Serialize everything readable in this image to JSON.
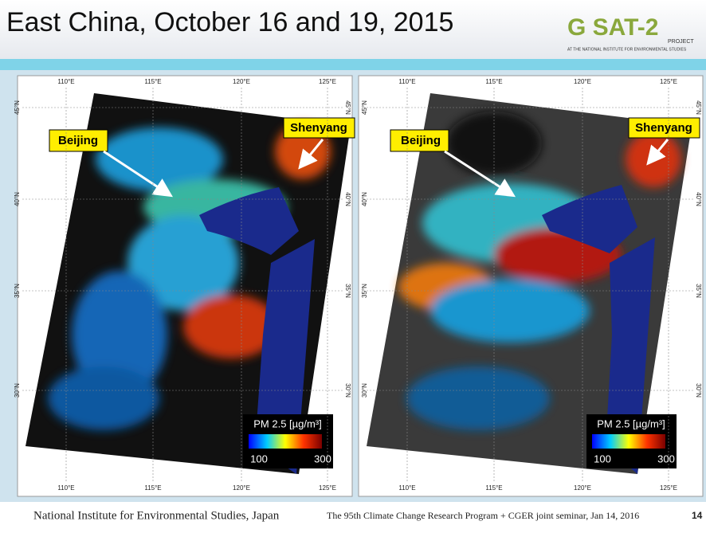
{
  "header": {
    "title": "East China, October 16 and 19, 2015",
    "logo": {
      "name": "G SAT-2",
      "project": "PROJECT",
      "institute": "AT THE NATIONAL INSTITUTE FOR ENVIRONMENTAL STUDIES"
    }
  },
  "panels": [
    {
      "lon_top": [
        "110°E",
        "115°E",
        "120°E",
        "125°E"
      ],
      "lon_bottom": [
        "110°E",
        "115°E",
        "120°E",
        "125°E"
      ],
      "lat_left": [
        "45°N",
        "40°N",
        "35°N",
        "30°N"
      ],
      "lat_right": [
        "45°N",
        "40°N",
        "35°N",
        "30°N"
      ],
      "cities": [
        "Beijing",
        "Shenyang"
      ],
      "legend": {
        "title": "PM 2.5 [µg/m³]",
        "min": "100",
        "max": "300"
      }
    },
    {
      "lon_top": [
        "110°E",
        "115°E",
        "120°E",
        "125°E"
      ],
      "lon_bottom": [
        "110°E",
        "115°E",
        "120°E",
        "125°E"
      ],
      "lat_left": [
        "45°N",
        "40°N",
        "35°N",
        "30°N"
      ],
      "lat_right": [
        "45°N",
        "40°N",
        "35°N",
        "30°N"
      ],
      "cities": [
        "Beijing",
        "Shenyang"
      ],
      "legend": {
        "title": "PM 2.5 [µg/m³]",
        "min": "100",
        "max": "300"
      }
    }
  ],
  "footer": {
    "institute": "National Institute for Environmental Studies, Japan",
    "event": "The 95th Climate Change Research Program + CGER joint seminar, Jan 14, 2016",
    "page": "14"
  }
}
